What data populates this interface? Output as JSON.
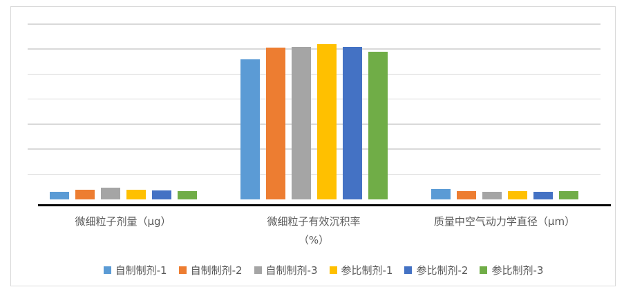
{
  "page": {
    "background": "#FFFFFF"
  },
  "chart": {
    "frame_border_color": "#D9D9D9",
    "gridline_color": "#D9D9D9",
    "axis_line_color": "#000000",
    "text_color": "#595959"
  },
  "chart_data": {
    "type": "bar",
    "title": "",
    "xlabel": "",
    "ylabel": "",
    "categories": [
      {
        "label": "微细粒子剂量（μg）",
        "lines": [
          "微细粒子剂量（μg）"
        ]
      },
      {
        "label": "微细粒子有效沉积率（%）",
        "lines": [
          "微细粒子有效沉积率",
          "（%）"
        ]
      },
      {
        "label": "质量中空气动力学直径（μm）",
        "lines": [
          "质量中空气动力学直径（μm）"
        ]
      }
    ],
    "series": [
      {
        "name": "自制制剂-1",
        "color": "#5B9BD5",
        "values": [
          3.0,
          56.0,
          4.0
        ]
      },
      {
        "name": "自制制剂-2",
        "color": "#ED7D31",
        "values": [
          3.9,
          60.5,
          3.4
        ]
      },
      {
        "name": "自制制剂-3",
        "color": "#A5A5A5",
        "values": [
          4.6,
          61.0,
          3.1
        ]
      },
      {
        "name": "参比制剂-1",
        "color": "#FFC000",
        "values": [
          3.9,
          62.0,
          3.4
        ]
      },
      {
        "name": "参比制剂-2",
        "color": "#4472C4",
        "values": [
          3.6,
          61.0,
          3.1
        ]
      },
      {
        "name": "参比制剂-3",
        "color": "#70AD47",
        "values": [
          3.3,
          59.0,
          3.4
        ]
      }
    ],
    "ylim": [
      0,
      70
    ],
    "major_unit": 10,
    "grid": true,
    "value_axis_labels_visible": false,
    "legend_position": "bottom"
  }
}
